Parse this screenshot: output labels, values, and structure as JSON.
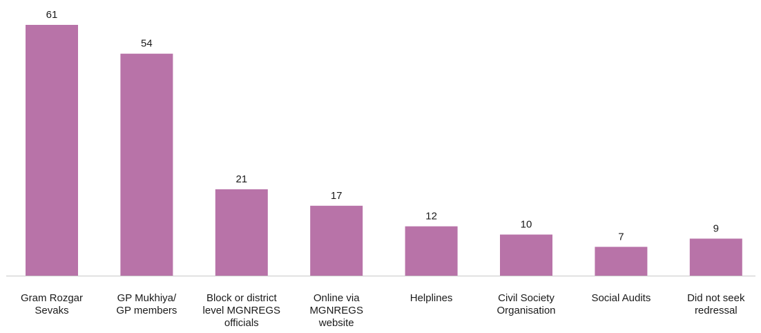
{
  "chart_data": {
    "type": "bar",
    "categories": [
      [
        "Gram Rozgar",
        "Sevaks"
      ],
      [
        "GP Mukhiya/",
        "GP members"
      ],
      [
        "Block or district",
        "level MGNREGS",
        "officials"
      ],
      [
        "Online via",
        "MGNREGS",
        "website"
      ],
      [
        "Helplines"
      ],
      [
        "Civil Society",
        "Organisation"
      ],
      [
        "Social Audits"
      ],
      [
        "Did not seek",
        "redressal"
      ]
    ],
    "values": [
      61,
      54,
      21,
      17,
      12,
      10,
      7,
      9
    ],
    "ylim": [
      0,
      61
    ],
    "grid": false,
    "legend": "none",
    "bar_color": "#b873a8",
    "axis_color": "#c8c8c8",
    "title": "",
    "xlabel": "",
    "ylabel": ""
  }
}
